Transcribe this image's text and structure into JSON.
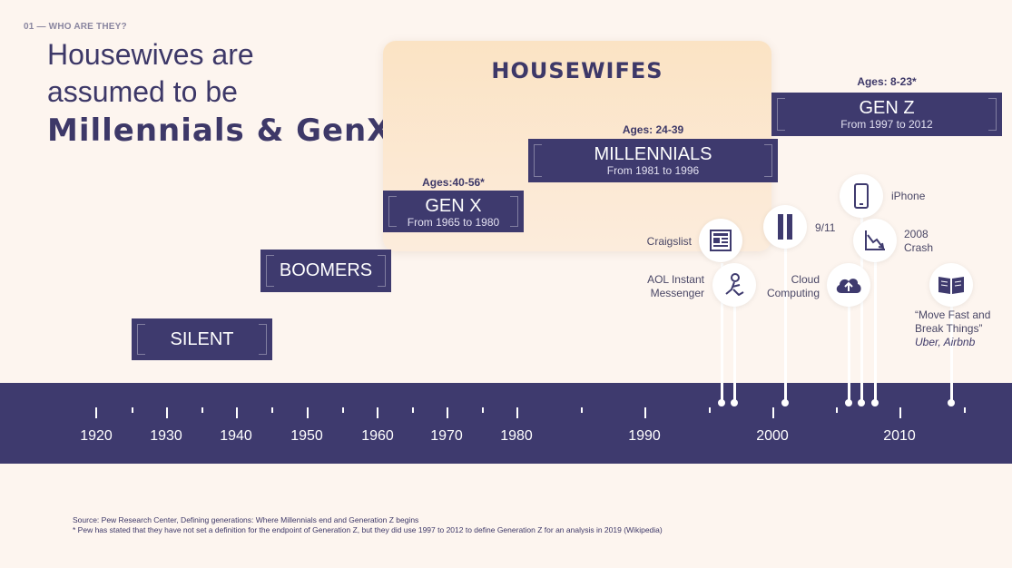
{
  "header": {
    "section_label": "01 — WHO ARE THEY?",
    "title_line1": "Housewives are",
    "title_line2": "assumed to be",
    "title_script": "Millennials & GenX"
  },
  "housewives_panel": {
    "title": "HOUSEWIFES"
  },
  "generations": {
    "silent": {
      "name": "SILENT"
    },
    "boomers": {
      "name": "BOOMERS"
    },
    "genx": {
      "name": "GEN X",
      "range": "From 1965 to 1980",
      "ages": "Ages:40-56*"
    },
    "millennials": {
      "name": "MILLENNIALS",
      "range": "From 1981 to 1996",
      "ages": "Ages: 24-39"
    },
    "genz": {
      "name": "GEN Z",
      "range": "From 1997 to 2012",
      "ages": "Ages: 8-23*"
    }
  },
  "timeline": {
    "years": [
      "1920",
      "1930",
      "1940",
      "1950",
      "1960",
      "1970",
      "1980",
      "1990",
      "2000",
      "2010"
    ]
  },
  "events": {
    "craigslist": "Craigslist",
    "aol_line1": "AOL Instant",
    "aol_line2": "Messenger",
    "nine_eleven": "9/11",
    "cloud_line1": "Cloud",
    "cloud_line2": "Computing",
    "iphone": "iPhone",
    "crash_line1": "2008",
    "crash_line2": "Crash",
    "move_fast_line1": "“Move Fast and",
    "move_fast_line2": "Break Things”",
    "move_fast_line3": "Uber, Airbnb"
  },
  "footer": {
    "source": "Source: Pew Research Center, Defining generations: Where Millennials end and Generation Z begins",
    "note": "* Pew has stated that they have not set a definition for the endpoint of Generation Z, but they did use 1997 to 2012 to define Generation Z for an analysis in 2019 (Wikipedia)"
  },
  "colors": {
    "navy": "#3e3a6e",
    "background": "#fdf5ef",
    "panel": "#fbe3c4"
  }
}
